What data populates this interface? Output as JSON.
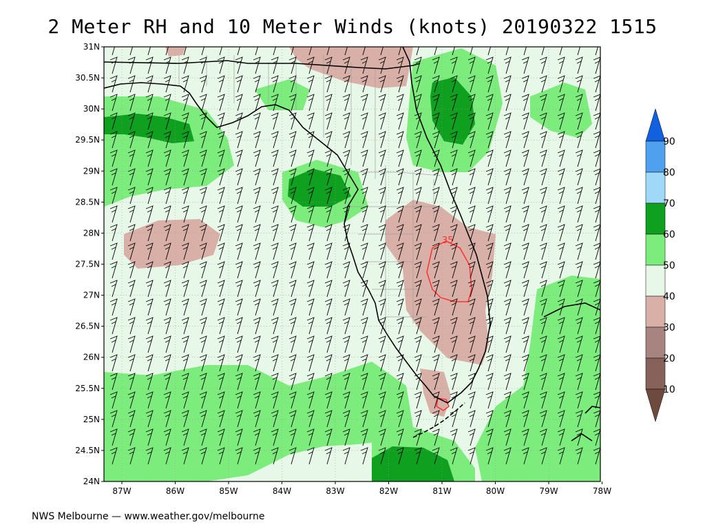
{
  "title": "2 Meter RH and 10 Meter Winds (knots) 20190322 1515",
  "credit": "NWS Melbourne — www.weather.gov/melbourne",
  "map": {
    "lat_labels": [
      "31N",
      "30.5N",
      "30N",
      "29.5N",
      "29N",
      "28.5N",
      "28N",
      "27.5N",
      "27N",
      "26.5N",
      "26N",
      "25.5N",
      "25N",
      "24.5N",
      "24N"
    ],
    "lon_labels": [
      "87W",
      "86W",
      "85W",
      "84W",
      "83W",
      "82W",
      "81W",
      "80W",
      "79W",
      "78W"
    ],
    "contour_label": "35"
  },
  "legend": {
    "levels": [
      "10",
      "20",
      "30",
      "40",
      "50",
      "60",
      "70",
      "80",
      "90"
    ],
    "colors": {
      "below_10": "#6e4a3e",
      "10_20": "#86625a",
      "20_30": "#a88480",
      "30_40": "#d8b0a8",
      "40_50": "#e8f8e8",
      "50_60": "#7cec7c",
      "60_70": "#10a020",
      "70_80": "#a0d8f8",
      "80_90": "#50a0f0",
      "above_90": "#1060e0"
    }
  },
  "colors": {
    "rh_dry": "#d8b0a8",
    "rh_moist": "#e8f8e8",
    "rh_wet": "#7cec7c",
    "rh_very_wet": "#10a020",
    "contour_line": "#ff3030",
    "coast": "#000000",
    "county_lines": "#a0a0a0"
  }
}
